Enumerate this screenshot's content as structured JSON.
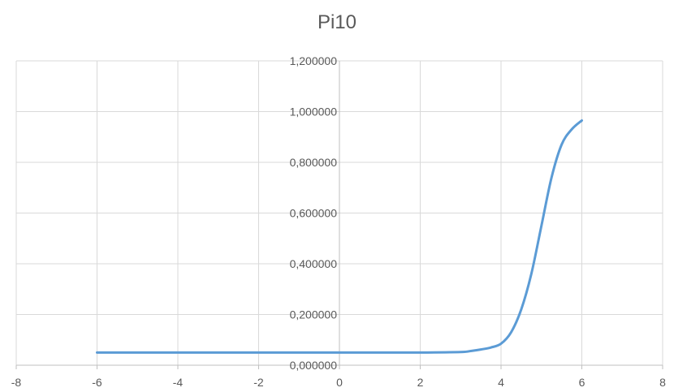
{
  "chart_data": {
    "type": "line",
    "title": "Pi10",
    "xlabel": "",
    "ylabel": "",
    "xlim": [
      -8,
      8
    ],
    "ylim": [
      0,
      1.2
    ],
    "grid": true,
    "x_ticks": [
      -8,
      -6,
      -4,
      -2,
      0,
      2,
      4,
      6,
      8
    ],
    "x_tick_labels": [
      "-8",
      "-6",
      "-4",
      "-2",
      "0",
      "2",
      "4",
      "6",
      "8"
    ],
    "y_ticks": [
      0,
      0.2,
      0.4,
      0.6,
      0.8,
      1.0,
      1.2
    ],
    "y_tick_labels": [
      "0,000000",
      "0,200000",
      "0,400000",
      "0,600000",
      "0,800000",
      "1,000000",
      "1,200000"
    ],
    "series_color": "#5B9BD5",
    "grid_color": "#D9D9D9",
    "series": [
      {
        "x": [
          -6,
          -5,
          -4,
          -3,
          -2,
          -1,
          0,
          1,
          2,
          3,
          3.25,
          3.5,
          3.75,
          4,
          4.25,
          4.5,
          4.75,
          5,
          5.25,
          5.5,
          5.75,
          6
        ],
        "values": [
          0.05,
          0.05,
          0.05,
          0.05,
          0.05,
          0.05,
          0.05,
          0.05,
          0.05,
          0.052,
          0.056,
          0.062,
          0.07,
          0.085,
          0.13,
          0.22,
          0.36,
          0.55,
          0.74,
          0.87,
          0.93,
          0.965
        ]
      }
    ]
  }
}
